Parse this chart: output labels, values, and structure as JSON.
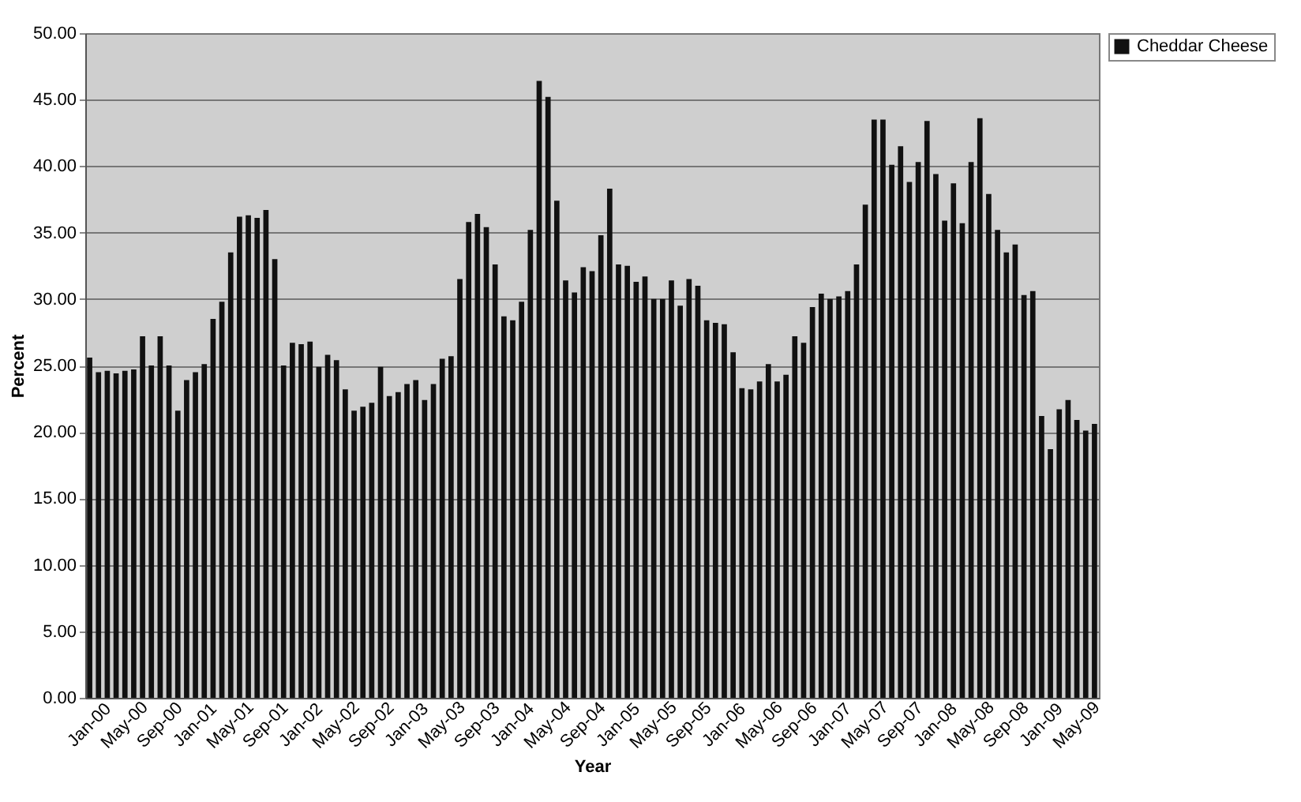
{
  "chart_data": {
    "type": "bar",
    "xlabel": "Year",
    "ylabel": "Percent",
    "categories": [
      "Jan-00",
      null,
      null,
      null,
      "May-00",
      null,
      null,
      null,
      "Sep-00",
      null,
      null,
      null,
      "Jan-01",
      null,
      null,
      null,
      "May-01",
      null,
      null,
      null,
      "Sep-01",
      null,
      null,
      null,
      "Jan-02",
      null,
      null,
      null,
      "May-02",
      null,
      null,
      null,
      "Sep-02",
      null,
      null,
      null,
      "Jan-03",
      null,
      null,
      null,
      "May-03",
      null,
      null,
      null,
      "Sep-03",
      null,
      null,
      null,
      "Jan-04",
      null,
      null,
      null,
      "May-04",
      null,
      null,
      null,
      "Sep-04",
      null,
      null,
      null,
      "Jan-05",
      null,
      null,
      null,
      "May-05",
      null,
      null,
      null,
      "Sep-05",
      null,
      null,
      null,
      "Jan-06",
      null,
      null,
      null,
      "May-06",
      null,
      null,
      null,
      "Sep-06",
      null,
      null,
      null,
      "Jan-07",
      null,
      null,
      null,
      "May-07",
      null,
      null,
      null,
      "Sep-07",
      null,
      null,
      null,
      "Jan-08",
      null,
      null,
      null,
      "May-08",
      null,
      null,
      null,
      "Sep-08",
      null,
      null,
      null,
      "Jan-09",
      null,
      null,
      null,
      "May-09",
      null,
      null
    ],
    "series": [
      {
        "name": "Cheddar Cheese",
        "color": "#111111",
        "values": [
          25.6,
          24.5,
          24.6,
          24.4,
          24.6,
          24.7,
          27.2,
          25.0,
          27.2,
          25.0,
          21.6,
          23.9,
          24.5,
          25.1,
          28.5,
          29.8,
          33.5,
          36.2,
          36.3,
          36.1,
          36.7,
          33.0,
          25.0,
          26.7,
          26.6,
          26.8,
          24.9,
          25.8,
          25.4,
          23.2,
          21.6,
          21.9,
          22.2,
          24.9,
          22.7,
          23.0,
          23.6,
          23.9,
          22.4,
          23.6,
          25.5,
          25.7,
          31.5,
          35.8,
          36.4,
          35.4,
          32.6,
          28.7,
          28.4,
          29.8,
          35.2,
          46.4,
          45.2,
          37.4,
          31.4,
          30.5,
          32.4,
          32.1,
          34.8,
          38.3,
          32.6,
          32.5,
          31.3,
          31.7,
          30.0,
          30.0,
          31.4,
          29.5,
          31.5,
          31.0,
          28.4,
          28.2,
          28.1,
          26.0,
          23.3,
          23.2,
          23.8,
          25.1,
          23.8,
          24.3,
          27.2,
          26.7,
          29.4,
          30.4,
          30.0,
          30.2,
          30.6,
          32.6,
          37.1,
          43.5,
          43.5,
          40.1,
          41.5,
          38.8,
          40.3,
          43.4,
          39.4,
          35.9,
          38.7,
          35.7,
          40.3,
          43.6,
          37.9,
          35.2,
          33.5,
          34.1,
          30.3,
          30.6,
          21.2,
          18.7,
          21.7,
          22.4,
          20.9,
          20.1,
          20.6
        ]
      }
    ],
    "ylim": [
      0,
      50
    ],
    "yticks": [
      {
        "value": 0,
        "label": "0.00"
      },
      {
        "value": 5,
        "label": "5.00"
      },
      {
        "value": 10,
        "label": "10.00"
      },
      {
        "value": 15,
        "label": "15.00"
      },
      {
        "value": 20,
        "label": "20.00"
      },
      {
        "value": 25,
        "label": "25.00"
      },
      {
        "value": 30,
        "label": "30.00"
      },
      {
        "value": 35,
        "label": "35.00"
      },
      {
        "value": 40,
        "label": "40.00"
      },
      {
        "value": 45,
        "label": "45.00"
      },
      {
        "value": 50,
        "label": "50.00"
      }
    ],
    "grid": "y",
    "legend": "right"
  }
}
